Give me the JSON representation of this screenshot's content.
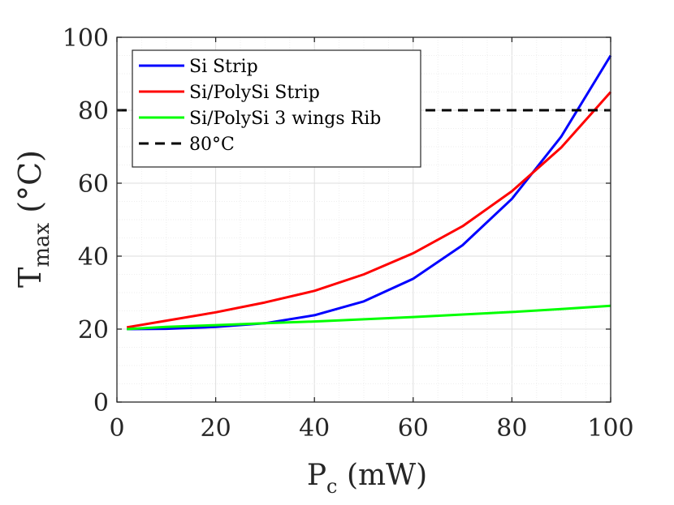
{
  "chart_data": {
    "type": "line",
    "title": "",
    "xlabel": {
      "base": "P",
      "sub": "c",
      "rest": " (mW)"
    },
    "ylabel": {
      "base": "T",
      "sub": "max",
      "rest": " (°C)"
    },
    "xlim": [
      0,
      100
    ],
    "ylim": [
      0,
      100
    ],
    "xticks": [
      0,
      20,
      40,
      60,
      80,
      100
    ],
    "yticks": [
      0,
      20,
      40,
      60,
      80,
      100
    ],
    "xtick_labels": [
      "0",
      "20",
      "40",
      "60",
      "80",
      "100"
    ],
    "ytick_labels": [
      "0",
      "20",
      "40",
      "60",
      "80",
      "100"
    ],
    "grid": true,
    "legend_position": "top-left",
    "series": [
      {
        "name": "Si Strip",
        "color": "#0000ff",
        "style": "solid",
        "x": [
          2,
          10,
          20,
          30,
          40,
          50,
          60,
          70,
          80,
          90,
          100
        ],
        "y": [
          20,
          20.1,
          20.6,
          21.6,
          23.8,
          27.6,
          33.8,
          43,
          55.7,
          72.8,
          95
        ]
      },
      {
        "name": "Si/PolySi Strip",
        "color": "#ff0000",
        "style": "solid",
        "x": [
          2,
          10,
          20,
          30,
          40,
          50,
          60,
          70,
          80,
          90,
          100
        ],
        "y": [
          20.5,
          22.3,
          24.6,
          27.3,
          30.5,
          35,
          40.8,
          48.2,
          57.8,
          69.8,
          85
        ]
      },
      {
        "name": "Si/PolySi 3 wings Rib",
        "color": "#00ff00",
        "style": "solid",
        "x": [
          2,
          10,
          20,
          30,
          40,
          50,
          60,
          70,
          80,
          90,
          100
        ],
        "y": [
          20,
          20.6,
          21.1,
          21.6,
          22.1,
          22.7,
          23.3,
          24,
          24.7,
          25.5,
          26.4
        ]
      },
      {
        "name": "80°C",
        "color": "#000000",
        "style": "dashed",
        "x": [
          0,
          100
        ],
        "y": [
          80,
          80
        ]
      }
    ]
  }
}
